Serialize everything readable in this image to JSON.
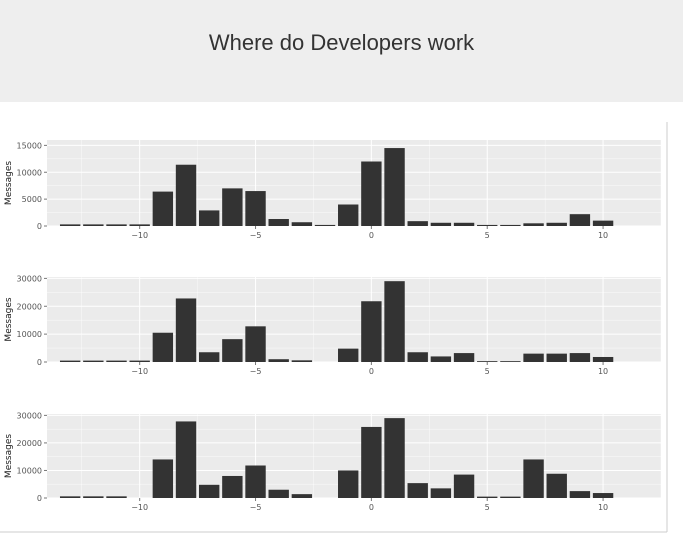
{
  "page": {
    "title": "Where do Developers work"
  },
  "colors": {
    "header_bg": "#eeeeee",
    "panel_bg": "#ebebeb",
    "grid": "#ffffff",
    "bar": "#333333",
    "figure_border": "#cccccc"
  },
  "chart_data": [
    {
      "type": "bar",
      "ylabel": "Messages",
      "xlabel": "",
      "x": [
        -13,
        -12,
        -11,
        -10,
        -9,
        -8,
        -7,
        -6,
        -5,
        -4,
        -3,
        -2,
        -1,
        0,
        1,
        2,
        3,
        4,
        5,
        6,
        7,
        8,
        9,
        10,
        11
      ],
      "values": [
        300,
        300,
        300,
        300,
        6400,
        11400,
        2900,
        7000,
        6500,
        1300,
        700,
        200,
        4000,
        12000,
        14500,
        900,
        600,
        600,
        200,
        200,
        500,
        600,
        2200,
        1000,
        0
      ],
      "xlim": [
        -14,
        12.5
      ],
      "ylim": [
        0,
        16000
      ],
      "yticks": [
        0,
        5000,
        10000,
        15000
      ],
      "ytick_labels": [
        "0",
        "5000",
        "10000",
        "15000"
      ],
      "xticks": [
        -10,
        -5,
        0,
        5,
        10
      ],
      "xtick_labels": [
        "−10",
        "−5",
        "0",
        "5",
        "10"
      ],
      "grid": true
    },
    {
      "type": "bar",
      "ylabel": "Messages",
      "xlabel": "",
      "x": [
        -13,
        -12,
        -11,
        -10,
        -9,
        -8,
        -7,
        -6,
        -5,
        -4,
        -3,
        -2,
        -1,
        0,
        1,
        2,
        3,
        4,
        5,
        6,
        7,
        8,
        9,
        10,
        11
      ],
      "values": [
        500,
        500,
        500,
        500,
        10500,
        22800,
        3500,
        8200,
        12800,
        1000,
        600,
        0,
        4800,
        21800,
        29000,
        3500,
        2000,
        3200,
        300,
        300,
        3000,
        3000,
        3200,
        1800,
        0
      ],
      "xlim": [
        -14,
        12.5
      ],
      "ylim": [
        0,
        30500
      ],
      "yticks": [
        0,
        10000,
        20000,
        30000
      ],
      "ytick_labels": [
        "0",
        "10000",
        "20000",
        "30000"
      ],
      "xticks": [
        -10,
        -5,
        0,
        5,
        10
      ],
      "xtick_labels": [
        "−10",
        "−5",
        "0",
        "5",
        "10"
      ],
      "grid": true
    },
    {
      "type": "bar",
      "ylabel": "Messages",
      "xlabel": "",
      "x": [
        -13,
        -12,
        -11,
        -10,
        -9,
        -8,
        -7,
        -6,
        -5,
        -4,
        -3,
        -2,
        -1,
        0,
        1,
        2,
        3,
        4,
        5,
        6,
        7,
        8,
        9,
        10,
        11
      ],
      "values": [
        600,
        600,
        600,
        0,
        14000,
        27800,
        4800,
        8000,
        11800,
        3000,
        1400,
        0,
        10000,
        25800,
        29000,
        5400,
        3500,
        8500,
        500,
        500,
        14000,
        8800,
        2500,
        1800,
        0
      ],
      "xlim": [
        -14,
        12.5
      ],
      "ylim": [
        0,
        30500
      ],
      "yticks": [
        0,
        10000,
        20000,
        30000
      ],
      "ytick_labels": [
        "0",
        "10000",
        "20000",
        "30000"
      ],
      "xticks": [
        -10,
        -5,
        0,
        5,
        10
      ],
      "xtick_labels": [
        "−10",
        "−5",
        "0",
        "5",
        "10"
      ],
      "grid": true
    }
  ]
}
